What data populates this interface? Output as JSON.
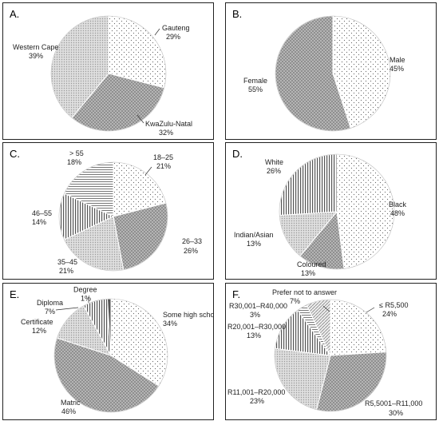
{
  "chart_data": [
    {
      "panel": "A.",
      "type": "pie",
      "slices": [
        {
          "label": "Gauteng",
          "value": 29,
          "pattern": "dots"
        },
        {
          "label": "KwaZulu-Natal",
          "value": 32,
          "pattern": "dark-check"
        },
        {
          "label": "Western Cape",
          "value": 39,
          "pattern": "grey-dots"
        }
      ],
      "value_labels": [
        "29%",
        "32%",
        "39%"
      ]
    },
    {
      "panel": "B.",
      "type": "pie",
      "slices": [
        {
          "label": "Male",
          "value": 45,
          "pattern": "dots"
        },
        {
          "label": "Female",
          "value": 55,
          "pattern": "dark-check"
        }
      ],
      "value_labels": [
        "45%",
        "55%"
      ]
    },
    {
      "panel": "C.",
      "type": "pie",
      "slices": [
        {
          "label": "18–25",
          "value": 21,
          "pattern": "dots"
        },
        {
          "label": "26–33",
          "value": 26,
          "pattern": "dark-check"
        },
        {
          "label": "35–45",
          "value": 21,
          "pattern": "grey-dots"
        },
        {
          "label": "46–55",
          "value": 14,
          "pattern": "vlines"
        },
        {
          "label": "> 55",
          "value": 18,
          "pattern": "hlines"
        }
      ],
      "value_labels": [
        "21%",
        "26%",
        "21%",
        "14%",
        "18%"
      ]
    },
    {
      "panel": "D.",
      "type": "pie",
      "slices": [
        {
          "label": "Black",
          "value": 48,
          "pattern": "dots"
        },
        {
          "label": "Coloured",
          "value": 13,
          "pattern": "dark-check"
        },
        {
          "label": "Indian/Asian",
          "value": 13,
          "pattern": "grey-dots"
        },
        {
          "label": "White",
          "value": 26,
          "pattern": "vlines"
        }
      ],
      "value_labels": [
        "48%",
        "13%",
        "13%",
        "26%"
      ]
    },
    {
      "panel": "E.",
      "type": "pie",
      "slices": [
        {
          "label": "Some high school, no matric",
          "value": 34,
          "pattern": "dots"
        },
        {
          "label": "Matric",
          "value": 46,
          "pattern": "dark-check"
        },
        {
          "label": "Certificate",
          "value": 12,
          "pattern": "grey-dots"
        },
        {
          "label": "Diploma",
          "value": 7,
          "pattern": "vlines"
        },
        {
          "label": "Degree",
          "value": 1,
          "pattern": "dark"
        }
      ],
      "value_labels": [
        "34%",
        "46%",
        "12%",
        "7%",
        "1%"
      ]
    },
    {
      "panel": "F.",
      "type": "pie",
      "slices": [
        {
          "label": "≤ R5,500",
          "value": 24,
          "pattern": "dots"
        },
        {
          "label": "R5,5001–R11,000",
          "value": 30,
          "pattern": "dark-check"
        },
        {
          "label": "R11,001–R20,000",
          "value": 23,
          "pattern": "grey-dots"
        },
        {
          "label": "R20,001–R30,000",
          "value": 13,
          "pattern": "vlines"
        },
        {
          "label": "R30,001–R40,000",
          "value": 3,
          "pattern": "hlines"
        },
        {
          "label": "Prefer not to answer",
          "value": 7,
          "pattern": "dotted-hatch"
        }
      ],
      "value_labels": [
        "24%",
        "30%",
        "23%",
        "13%",
        "3%",
        "7%"
      ]
    }
  ]
}
